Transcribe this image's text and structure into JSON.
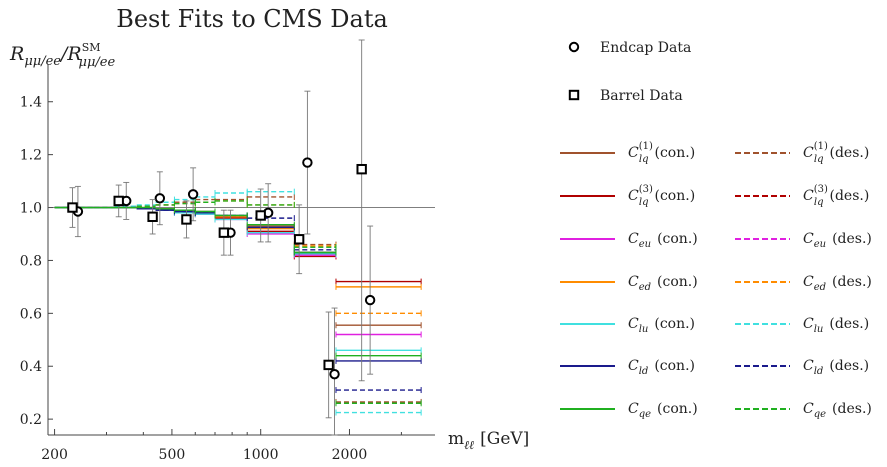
{
  "chart_data": {
    "type": "scatter",
    "title": "Best Fits to CMS Data",
    "ylabel": "R_{μμ/ee}/R^{SM}_{μμ/ee}",
    "ylabel_parts": {
      "main_r": "R",
      "main_sub": "μμ/ee",
      "slash": "/",
      "ref_r": "R",
      "ref_sup": "SM",
      "ref_sub": "μμ/ee"
    },
    "xlabel": "m_ℓℓ [GeV]",
    "xlabel_parts": {
      "m": "m",
      "sub": "ℓℓ",
      "unit": "[GeV]"
    },
    "x_scale": "log",
    "xlim": [
      190,
      3900
    ],
    "ylim": [
      0.14,
      1.52
    ],
    "x_ticks": [
      200,
      500,
      1000,
      2000
    ],
    "y_ticks": [
      0.2,
      0.4,
      0.6,
      0.8,
      1.0,
      1.2,
      1.4
    ],
    "reference_line_y": 1.0,
    "grid": false,
    "legend_position": "right",
    "data_series": [
      {
        "name": "Endcap Data",
        "marker": "circle",
        "points": [
          {
            "x": 240,
            "y": 0.985,
            "err": 0.095
          },
          {
            "x": 350,
            "y": 1.025,
            "err": 0.07
          },
          {
            "x": 455,
            "y": 1.035,
            "err": 0.1
          },
          {
            "x": 590,
            "y": 1.05,
            "err": 0.1
          },
          {
            "x": 790,
            "y": 0.905,
            "err": 0.085
          },
          {
            "x": 1060,
            "y": 0.98,
            "err": 0.11
          },
          {
            "x": 1440,
            "y": 1.17,
            "err": 0.27
          },
          {
            "x": 1780,
            "y": 0.37,
            "err": 0.25
          },
          {
            "x": 2350,
            "y": 0.65,
            "err": 0.28
          }
        ]
      },
      {
        "name": "Barrel Data",
        "marker": "square",
        "points": [
          {
            "x": 230,
            "y": 1.0,
            "err": 0.075
          },
          {
            "x": 330,
            "y": 1.025,
            "err": 0.06
          },
          {
            "x": 430,
            "y": 0.965,
            "err": 0.065
          },
          {
            "x": 560,
            "y": 0.955,
            "err": 0.07
          },
          {
            "x": 750,
            "y": 0.905,
            "err": 0.085
          },
          {
            "x": 1000,
            "y": 0.97,
            "err": 0.1
          },
          {
            "x": 1350,
            "y": 0.88,
            "err": 0.13
          },
          {
            "x": 1700,
            "y": 0.405,
            "err": 0.2
          },
          {
            "x": 2200,
            "y": 1.145,
            "err": 0.8
          }
        ]
      }
    ],
    "bins": [
      [
        200,
        220
      ],
      [
        220,
        243
      ],
      [
        243,
        273
      ],
      [
        273,
        320
      ],
      [
        320,
        380
      ],
      [
        380,
        440
      ],
      [
        440,
        510
      ],
      [
        510,
        600
      ],
      [
        600,
        700
      ],
      [
        700,
        900
      ],
      [
        900,
        1300
      ],
      [
        1300,
        1800
      ],
      [
        1800,
        3500
      ]
    ],
    "fit_series": [
      {
        "name": "C_lq^(1) (con.)",
        "coeff": {
          "base": "C",
          "sub": "lq",
          "sup": "(1)"
        },
        "tag": "(con.)",
        "color": "#a0522d",
        "dash": false,
        "levels": [
          1.0,
          1.0,
          1.0,
          1.0,
          1.0,
          1.0,
          0.995,
          0.99,
          0.985,
          0.965,
          0.93,
          0.83,
          0.555
        ]
      },
      {
        "name": "C_lq^(1) (des.)",
        "coeff": {
          "base": "C",
          "sub": "lq",
          "sup": "(1)"
        },
        "tag": "(des.)",
        "color": "#a0522d",
        "dash": true,
        "levels": [
          1.0,
          1.0,
          1.0,
          1.0,
          1.005,
          1.005,
          1.01,
          1.02,
          1.03,
          1.03,
          1.04,
          0.86,
          0.265
        ]
      },
      {
        "name": "C_lq^(3) (con.)",
        "coeff": {
          "base": "C",
          "sub": "lq",
          "sup": "(3)"
        },
        "tag": "(con.)",
        "color": "#b00000",
        "dash": false,
        "levels": [
          1.0,
          1.0,
          1.0,
          1.0,
          1.0,
          0.995,
          0.99,
          0.98,
          0.975,
          0.96,
          0.91,
          0.815,
          0.72
        ]
      },
      {
        "name": "C_lq^(3) (des.)",
        "coeff": {
          "base": "C",
          "sub": "lq",
          "sup": "(3)"
        },
        "tag": "(des.)",
        "color": "#b00000",
        "dash": true,
        "levels": []
      },
      {
        "name": "C_eu (con.)",
        "coeff": {
          "base": "C",
          "sub": "eu",
          "sup": ""
        },
        "tag": "(con.)",
        "color": "#e020e0",
        "dash": false,
        "levels": [
          1.0,
          1.0,
          1.0,
          1.0,
          1.0,
          0.995,
          0.99,
          0.98,
          0.975,
          0.955,
          0.9,
          0.82,
          0.52
        ]
      },
      {
        "name": "C_eu (des.)",
        "coeff": {
          "base": "C",
          "sub": "eu",
          "sup": ""
        },
        "tag": "(des.)",
        "color": "#e020e0",
        "dash": true,
        "levels": []
      },
      {
        "name": "C_ed (con.)",
        "coeff": {
          "base": "C",
          "sub": "ed",
          "sup": ""
        },
        "tag": "(con.)",
        "color": "#ff8c00",
        "dash": false,
        "levels": [
          1.0,
          1.0,
          1.0,
          1.0,
          1.0,
          0.995,
          0.99,
          0.985,
          0.98,
          0.965,
          0.92,
          0.83,
          0.7
        ]
      },
      {
        "name": "C_ed (des.)",
        "coeff": {
          "base": "C",
          "sub": "ed",
          "sup": ""
        },
        "tag": "(des.)",
        "color": "#ff8c00",
        "dash": true,
        "levels": [
          1.0,
          1.0,
          1.0,
          1.0,
          1.0,
          1.005,
          1.01,
          1.015,
          1.02,
          1.025,
          1.01,
          0.855,
          0.6
        ]
      },
      {
        "name": "C_lu (con.)",
        "coeff": {
          "base": "C",
          "sub": "lu",
          "sup": ""
        },
        "tag": "(con.)",
        "color": "#40e0e0",
        "dash": false,
        "levels": [
          1.0,
          1.0,
          1.0,
          1.0,
          1.0,
          0.995,
          0.99,
          0.98,
          0.975,
          0.955,
          0.905,
          0.825,
          0.46
        ]
      },
      {
        "name": "C_lu (des.)",
        "coeff": {
          "base": "C",
          "sub": "lu",
          "sup": ""
        },
        "tag": "(des.)",
        "color": "#40e0e0",
        "dash": true,
        "levels": [
          1.0,
          1.0,
          1.0,
          1.0,
          1.005,
          1.01,
          1.02,
          1.03,
          1.04,
          1.055,
          1.06,
          0.85,
          0.225
        ]
      },
      {
        "name": "C_ld (con.)",
        "coeff": {
          "base": "C",
          "sub": "ld",
          "sup": ""
        },
        "tag": "(con.)",
        "color": "#1a1a8c",
        "dash": false,
        "levels": [
          1.0,
          1.0,
          1.0,
          1.0,
          1.0,
          0.995,
          0.99,
          0.985,
          0.98,
          0.97,
          0.925,
          0.83,
          0.42
        ]
      },
      {
        "name": "C_ld (des.)",
        "coeff": {
          "base": "C",
          "sub": "ld",
          "sup": ""
        },
        "tag": "(des.)",
        "color": "#1a1a8c",
        "dash": true,
        "levels": [
          1.0,
          1.0,
          1.0,
          1.0,
          1.0,
          0.995,
          0.99,
          0.985,
          0.98,
          0.97,
          0.96,
          0.84,
          0.31
        ]
      },
      {
        "name": "C_qe (con.)",
        "coeff": {
          "base": "C",
          "sub": "qe",
          "sup": ""
        },
        "tag": "(con.)",
        "color": "#20b020",
        "dash": false,
        "levels": [
          1.0,
          1.0,
          1.0,
          1.0,
          1.0,
          1.0,
          0.995,
          0.99,
          0.985,
          0.97,
          0.935,
          0.83,
          0.44
        ]
      },
      {
        "name": "C_qe (des.)",
        "coeff": {
          "base": "C",
          "sub": "qe",
          "sup": ""
        },
        "tag": "(des.)",
        "color": "#20b020",
        "dash": true,
        "levels": [
          1.0,
          1.0,
          1.0,
          1.0,
          1.0,
          1.005,
          1.01,
          1.015,
          1.02,
          1.025,
          1.01,
          0.85,
          0.26
        ]
      }
    ]
  }
}
